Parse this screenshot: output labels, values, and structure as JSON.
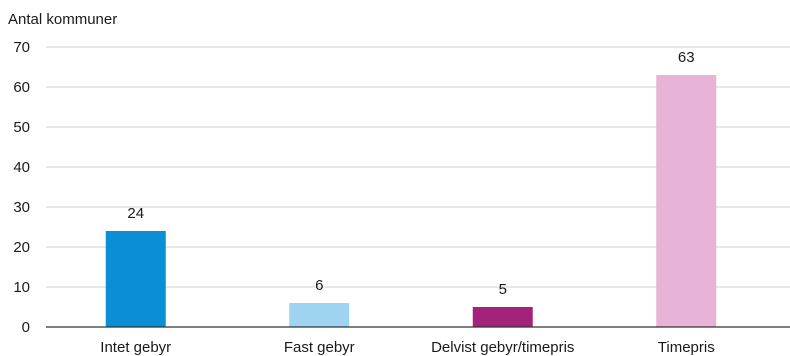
{
  "chart_data": {
    "type": "bar",
    "ylabel": "Antal kommuner",
    "categories": [
      "Intet gebyr",
      "Fast gebyr",
      "Delvist gebyr/timepris",
      "Timepris"
    ],
    "values": [
      24,
      6,
      5,
      63
    ],
    "colors": [
      "#0a8fd6",
      "#9fd3f2",
      "#a3227a",
      "#e7b3d6"
    ],
    "data_labels": [
      "24",
      "6",
      "5",
      "63"
    ],
    "yticks": [
      "0",
      "10",
      "20",
      "30",
      "40",
      "50",
      "60",
      "70"
    ],
    "ylim": [
      0,
      70
    ],
    "grid": true,
    "legend": "none"
  }
}
